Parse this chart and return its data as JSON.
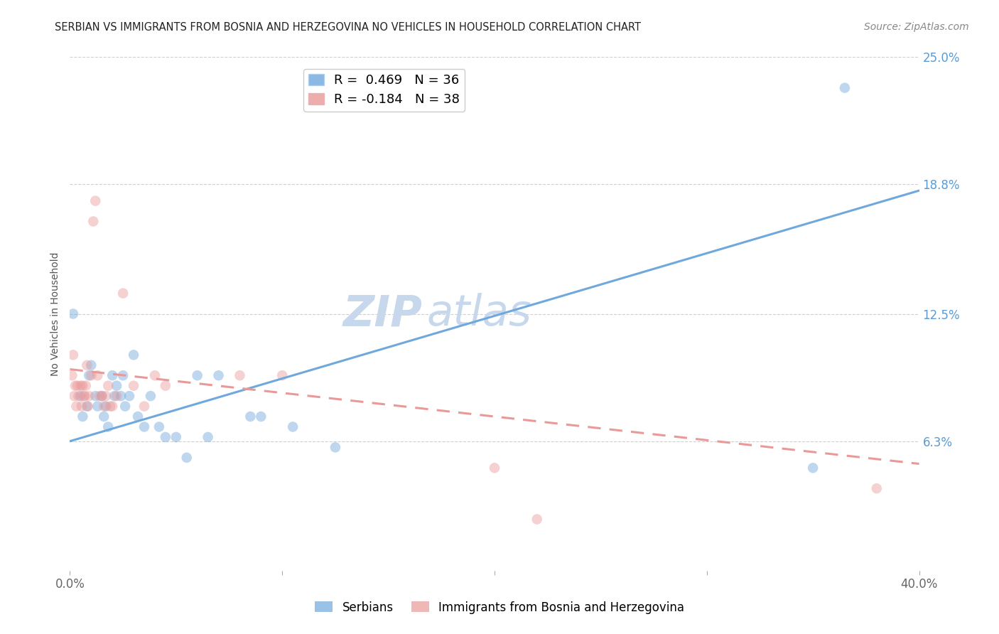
{
  "title": "SERBIAN VS IMMIGRANTS FROM BOSNIA AND HERZEGOVINA NO VEHICLES IN HOUSEHOLD CORRELATION CHART",
  "source": "Source: ZipAtlas.com",
  "ylabel": "No Vehicles in Household",
  "xlim": [
    0.0,
    40.0
  ],
  "ylim": [
    0.0,
    25.0
  ],
  "yticks": [
    6.3,
    12.5,
    18.8,
    25.0
  ],
  "yticklabels": [
    "6.3%",
    "12.5%",
    "18.8%",
    "25.0%"
  ],
  "legend_entries": [
    {
      "label": "R =  0.469   N = 36",
      "color": "#6fa8dc"
    },
    {
      "label": "R = -0.184   N = 38",
      "color": "#ea9999"
    }
  ],
  "watermark_top": "ZIP",
  "watermark_bot": "atlas",
  "series_blue": {
    "name": "Serbians",
    "color": "#6fa8dc",
    "x": [
      0.15,
      0.5,
      0.6,
      0.8,
      0.9,
      1.0,
      1.2,
      1.3,
      1.5,
      1.6,
      1.7,
      1.8,
      2.0,
      2.1,
      2.2,
      2.4,
      2.5,
      2.6,
      2.8,
      3.0,
      3.2,
      3.5,
      3.8,
      4.2,
      4.5,
      5.0,
      5.5,
      6.0,
      6.5,
      7.0,
      8.5,
      9.0,
      10.5,
      12.5,
      35.0,
      36.5
    ],
    "y": [
      12.5,
      8.5,
      7.5,
      8.0,
      9.5,
      10.0,
      8.5,
      8.0,
      8.5,
      7.5,
      8.0,
      7.0,
      9.5,
      8.5,
      9.0,
      8.5,
      9.5,
      8.0,
      8.5,
      10.5,
      7.5,
      7.0,
      8.5,
      7.0,
      6.5,
      6.5,
      5.5,
      9.5,
      6.5,
      9.5,
      7.5,
      7.5,
      7.0,
      6.0,
      5.0,
      23.5
    ]
  },
  "series_pink": {
    "name": "Immigrants from Bosnia and Herzegovina",
    "color": "#ea9999",
    "x": [
      0.1,
      0.15,
      0.2,
      0.25,
      0.3,
      0.35,
      0.4,
      0.5,
      0.55,
      0.6,
      0.65,
      0.7,
      0.75,
      0.8,
      0.85,
      0.9,
      1.0,
      1.1,
      1.2,
      1.3,
      1.4,
      1.5,
      1.6,
      1.7,
      1.8,
      1.9,
      2.0,
      2.2,
      2.5,
      3.0,
      3.5,
      4.0,
      4.5,
      8.0,
      10.0,
      20.0,
      22.0,
      38.0
    ],
    "y": [
      9.5,
      10.5,
      8.5,
      9.0,
      8.0,
      9.0,
      8.5,
      9.0,
      8.0,
      9.0,
      8.5,
      8.5,
      9.0,
      10.0,
      8.0,
      8.5,
      9.5,
      17.0,
      18.0,
      9.5,
      8.5,
      8.5,
      8.0,
      8.5,
      9.0,
      8.0,
      8.0,
      8.5,
      13.5,
      9.0,
      8.0,
      9.5,
      9.0,
      9.5,
      9.5,
      5.0,
      2.5,
      4.0
    ]
  },
  "trendline_blue": {
    "x_start": 0.0,
    "y_start": 6.3,
    "x_end": 40.0,
    "y_end": 18.5
  },
  "trendline_pink": {
    "x_start": 0.0,
    "y_start": 9.8,
    "x_end": 40.0,
    "y_end": 5.2
  },
  "background_color": "#ffffff",
  "grid_color": "#d0d0d0",
  "title_fontsize": 10.5,
  "axis_label_fontsize": 10,
  "tick_fontsize": 12,
  "legend_fontsize": 13,
  "watermark_fontsize_zip": 44,
  "watermark_fontsize_atlas": 44,
  "watermark_color": "#c8d8ec",
  "source_fontsize": 10,
  "scatter_size": 110,
  "scatter_alpha": 0.45,
  "ytick_color": "#5b9bd5",
  "xtick_color": "#666666"
}
